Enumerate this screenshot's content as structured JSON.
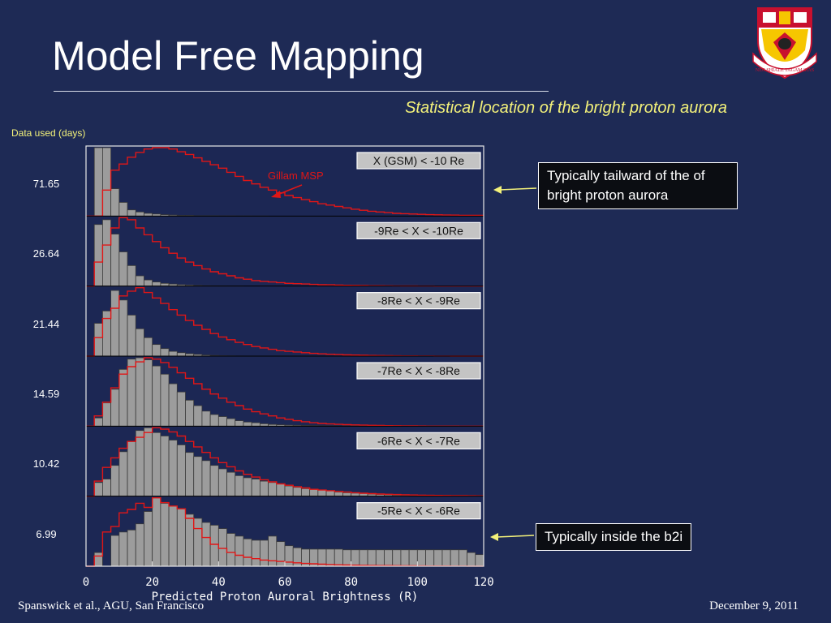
{
  "slide": {
    "title": "Model Free Mapping",
    "subtitle": "Statistical location of the bright proton aurora",
    "days_label": "Data used (days)",
    "footer_left": "Spanswick et al., AGU, San Francisco",
    "footer_right": "December 9, 2011",
    "callouts": {
      "tailward": "Typically tailward of the of bright proton aurora",
      "inside": "Typically inside the b2i"
    },
    "logo_motto": "NEC SHIALE TAGAM SIAS"
  },
  "colors": {
    "background": "#1e2a55",
    "panel": "#1c2754",
    "histogram_fill": "#9c9c9c",
    "histogram_edge": "#3a3a3a",
    "red_curve": "#e01616",
    "accent_text": "#f3f17a"
  },
  "chart_data": {
    "type": "bar",
    "xlabel": "Predicted Proton Auroral Brightness (R)",
    "xlim": [
      0,
      120
    ],
    "xticks": [
      0,
      20,
      40,
      60,
      80,
      100,
      120
    ],
    "bin_width": 2.5,
    "annotation": "Gillam MSP",
    "panels": [
      {
        "label": "X (GSM) < -10 Re",
        "days": "71.65",
        "gray": [
          0,
          100,
          100,
          40,
          20,
          9,
          6,
          4,
          3,
          2,
          1.5,
          1,
          1,
          0.5,
          0.5,
          0.5,
          0.3,
          0.3,
          0.2,
          0.2,
          0.1,
          0.1,
          0,
          0,
          0,
          0,
          0,
          0,
          0,
          0,
          0,
          0,
          0,
          0,
          0,
          0,
          0,
          0,
          0,
          0,
          0,
          0,
          0,
          0,
          0,
          0,
          0,
          0
        ],
        "red": [
          0,
          0,
          38,
          67,
          76,
          86,
          93,
          98,
          100,
          100,
          98,
          94,
          90,
          85,
          80,
          75,
          70,
          64,
          58,
          52,
          47,
          42,
          38,
          34,
          30,
          27,
          24,
          21,
          18,
          16,
          14,
          12,
          10,
          8.5,
          7,
          6,
          5,
          4,
          3.5,
          3,
          2.5,
          2,
          1.8,
          1.5,
          1.3,
          1.1,
          1,
          1
        ]
      },
      {
        "label": "-9Re < X  < -10Re",
        "days": "26.64",
        "gray": [
          0,
          90,
          97,
          76,
          50,
          30,
          15,
          9,
          6,
          4,
          3,
          2,
          1.5,
          1,
          0.6,
          0.4,
          0.3,
          0.2,
          0.1,
          0,
          0,
          0,
          0,
          0,
          0,
          0,
          0,
          0,
          0,
          0,
          0,
          0,
          0,
          0,
          0,
          0,
          0,
          0,
          0,
          0,
          0,
          0,
          0,
          0,
          0,
          0,
          0,
          0
        ],
        "red": [
          0,
          35,
          60,
          85,
          100,
          97,
          85,
          75,
          65,
          56,
          48,
          41,
          35,
          30,
          25,
          21,
          18,
          15,
          12,
          10,
          8,
          7,
          6,
          5,
          4,
          3.5,
          3,
          2.5,
          2,
          1.8,
          1.5,
          1.2,
          1,
          0.8,
          0.6,
          0.5,
          0.4,
          0.3,
          0.2,
          0.2,
          0.1,
          0.1,
          0,
          0,
          0,
          0,
          0,
          0
        ]
      },
      {
        "label": "-8Re < X  < -9Re",
        "days": "21.44",
        "gray": [
          0,
          48,
          66,
          96,
          82,
          60,
          40,
          27,
          17,
          11,
          7,
          5,
          3.5,
          2.5,
          1.5,
          1,
          0.6,
          0.4,
          0.2,
          0.1,
          0,
          0,
          0,
          0,
          0,
          0,
          0,
          0,
          0,
          0,
          0,
          0,
          0,
          0,
          0,
          0,
          0,
          0,
          0,
          0,
          0,
          0,
          0,
          0,
          0,
          0,
          0,
          0
        ],
        "red": [
          0,
          27,
          55,
          70,
          88,
          95,
          100,
          93,
          85,
          77,
          68,
          60,
          52,
          45,
          39,
          33,
          28,
          24,
          20,
          17,
          14,
          12,
          10,
          8,
          7,
          6,
          5,
          4,
          3.3,
          2.7,
          2.2,
          1.8,
          1.5,
          1.2,
          1,
          0.8,
          0.6,
          0.5,
          0.4,
          0.3,
          0.2,
          0.2,
          0.1,
          0.1,
          0,
          0,
          0,
          0
        ]
      },
      {
        "label": "-7Re < X  < -8Re",
        "days": "14.59",
        "gray": [
          0,
          12,
          34,
          54,
          83,
          98,
          100,
          97,
          88,
          76,
          62,
          50,
          38,
          30,
          22,
          17,
          14,
          11,
          8,
          6,
          5,
          3.5,
          2.5,
          2,
          1.5,
          1.2,
          1,
          0.8,
          0.6,
          0.5,
          0.4,
          0.3,
          0.3,
          0.2,
          0.2,
          0.1,
          0.1,
          0.1,
          0,
          0,
          0,
          0,
          0,
          0,
          0,
          0,
          0,
          0
        ],
        "red": [
          0,
          15,
          35,
          56,
          76,
          87,
          94,
          100,
          98,
          93,
          86,
          78,
          70,
          62,
          54,
          47,
          41,
          35,
          30,
          25,
          21,
          18,
          15,
          12,
          10,
          8,
          6.5,
          5,
          4,
          3.3,
          2.7,
          2.2,
          1.8,
          1.5,
          1.2,
          1,
          0.8,
          0.6,
          0.5,
          0.4,
          0.3,
          0.2,
          0.2,
          0.1,
          0.1,
          0,
          0,
          0
        ]
      },
      {
        "label": "-6Re < X  < -7Re",
        "days": "10.42",
        "gray": [
          0,
          20,
          25,
          45,
          65,
          80,
          96,
          100,
          93,
          88,
          82,
          75,
          64,
          58,
          52,
          45,
          40,
          35,
          30,
          27,
          25,
          22,
          20,
          18,
          15,
          13,
          11,
          10,
          9,
          8,
          6,
          5,
          4.5,
          4,
          3,
          2.5,
          2,
          1.5,
          1.2,
          1,
          0.8,
          0.6,
          0.5,
          0.4,
          0.3,
          0.2,
          0.1,
          0
        ],
        "red": [
          0,
          22,
          42,
          56,
          70,
          80,
          86,
          93,
          100,
          98,
          94,
          88,
          80,
          72,
          64,
          56,
          49,
          43,
          37,
          32,
          28,
          24,
          21,
          18,
          16,
          14,
          12,
          10,
          9,
          8,
          7,
          6,
          5,
          4.3,
          3.7,
          3.2,
          2.8,
          2.4,
          2,
          1.7,
          1.5,
          1.3,
          1.1,
          1,
          0.9,
          0.8,
          0.7,
          0.6
        ]
      },
      {
        "label": "-5Re < X  < -6Re",
        "days": "6.99",
        "gray": [
          0,
          20,
          0,
          45,
          50,
          53,
          62,
          80,
          100,
          92,
          88,
          84,
          76,
          70,
          64,
          60,
          55,
          48,
          44,
          40,
          38,
          38,
          44,
          36,
          30,
          27,
          25,
          25,
          25,
          25,
          25,
          24,
          24,
          24,
          24,
          24,
          24,
          24,
          24,
          24,
          24,
          24,
          24,
          24,
          24,
          24,
          20,
          17
        ],
        "red": [
          0,
          15,
          50,
          58,
          78,
          83,
          92,
          86,
          100,
          93,
          88,
          84,
          70,
          55,
          42,
          32,
          26,
          20,
          16,
          13,
          11,
          9,
          8,
          7,
          6,
          5,
          4,
          3.5,
          3,
          2.5,
          2,
          1.8,
          1.5,
          1.3,
          1.1,
          1,
          0.9,
          0.8,
          0.7,
          0.6,
          0.5,
          0.4,
          0.3,
          0.3,
          0.2,
          0.2,
          0.1,
          0.1
        ]
      }
    ]
  }
}
